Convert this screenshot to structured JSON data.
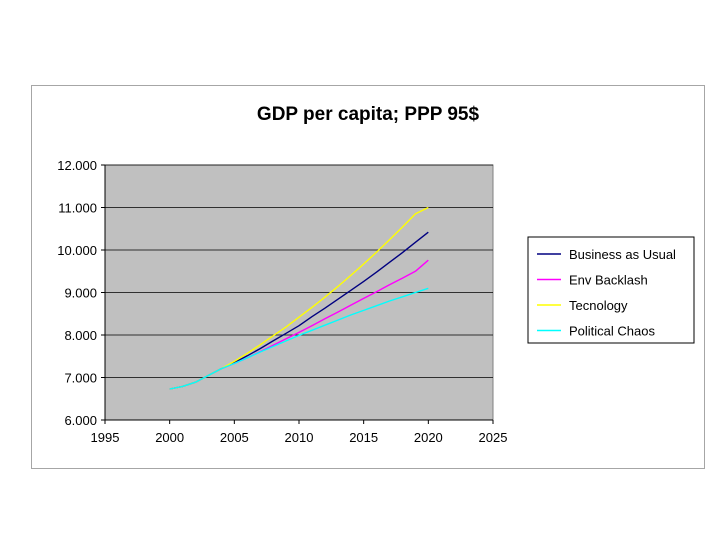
{
  "chart_data": {
    "type": "line",
    "title": "GDP per capita; PPP 95$",
    "xlabel": "",
    "ylabel": "",
    "xlim": [
      1995,
      2025
    ],
    "ylim": [
      6000,
      12000
    ],
    "x_ticks": [
      1995,
      2000,
      2005,
      2010,
      2015,
      2020,
      2025
    ],
    "x_tick_labels": [
      "1995",
      "2000",
      "2005",
      "2010",
      "2015",
      "2020",
      "2025"
    ],
    "y_ticks": [
      6000,
      7000,
      8000,
      9000,
      10000,
      11000,
      12000
    ],
    "y_tick_labels": [
      "6.000",
      "7.000",
      "8.000",
      "9.000",
      "10.000",
      "11.000",
      "12.000"
    ],
    "grid": "horizontal",
    "plot_background": "#c0c0c0",
    "legend_position": "right",
    "x": [
      2000,
      2001,
      2002,
      2003,
      2004,
      2005,
      2006,
      2007,
      2008,
      2009,
      2010,
      2011,
      2012,
      2013,
      2014,
      2015,
      2016,
      2017,
      2018,
      2019,
      2020
    ],
    "series": [
      {
        "name": "Business as Usual",
        "color": "#000080",
        "values": [
          6730,
          6790,
          6890,
          7050,
          7210,
          7350,
          7510,
          7680,
          7860,
          8040,
          8220,
          8430,
          8630,
          8840,
          9050,
          9260,
          9480,
          9710,
          9940,
          10180,
          10420
        ]
      },
      {
        "name": "Env Backlash",
        "color": "#ff00ff",
        "values": [
          6730,
          6790,
          6890,
          7050,
          7210,
          7330,
          7460,
          7610,
          7760,
          7910,
          8060,
          8220,
          8380,
          8540,
          8700,
          8860,
          9020,
          9180,
          9340,
          9500,
          9760
        ]
      },
      {
        "name": "Tecnology",
        "color": "#ffff00",
        "values": [
          6730,
          6790,
          6890,
          7050,
          7210,
          7380,
          7570,
          7770,
          7980,
          8190,
          8420,
          8650,
          8890,
          9140,
          9400,
          9670,
          9950,
          10240,
          10540,
          10850,
          11000
        ]
      },
      {
        "name": "Political Chaos",
        "color": "#00ffff",
        "values": [
          6730,
          6790,
          6890,
          7050,
          7210,
          7330,
          7460,
          7600,
          7730,
          7860,
          7990,
          8110,
          8230,
          8350,
          8470,
          8580,
          8690,
          8800,
          8900,
          9000,
          9100
        ]
      }
    ]
  }
}
